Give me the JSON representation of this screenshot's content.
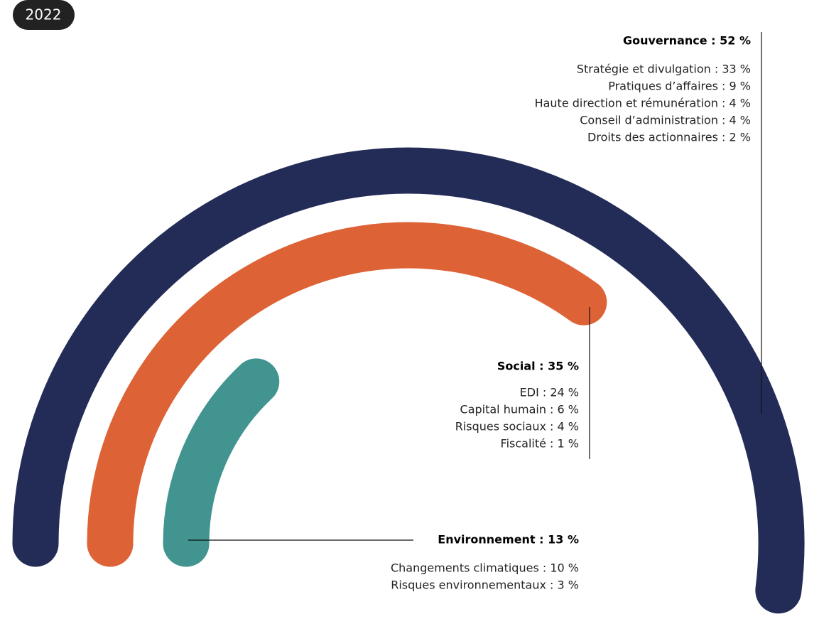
{
  "chart_data": {
    "type": "radial_bar",
    "title": "2022",
    "values": [
      52,
      35,
      13
    ],
    "value_labels": [
      "Gouvernance : 52 %",
      "Social : 35 %",
      "Environnement : 13 %"
    ],
    "colors": [
      "#232b57",
      "#dd6236",
      "#429490"
    ],
    "ylim": [
      0,
      100
    ],
    "details": [
      [
        "Stratégie et divulgation : 33 %",
        "Pratiques d’affaires : 9 %",
        "Haute direction et rémunération : 4 %",
        "Conseil d’administration : 4 %",
        "Droits des actionnaires : 2 %"
      ],
      [
        "EDI : 24 %",
        "Capital humain : 6 %",
        "Risques sociaux : 4 %",
        "Fiscalité : 1 %"
      ],
      [
        "Changements climatiques : 10 %",
        "Risques environnementaux : 3 %"
      ]
    ]
  }
}
